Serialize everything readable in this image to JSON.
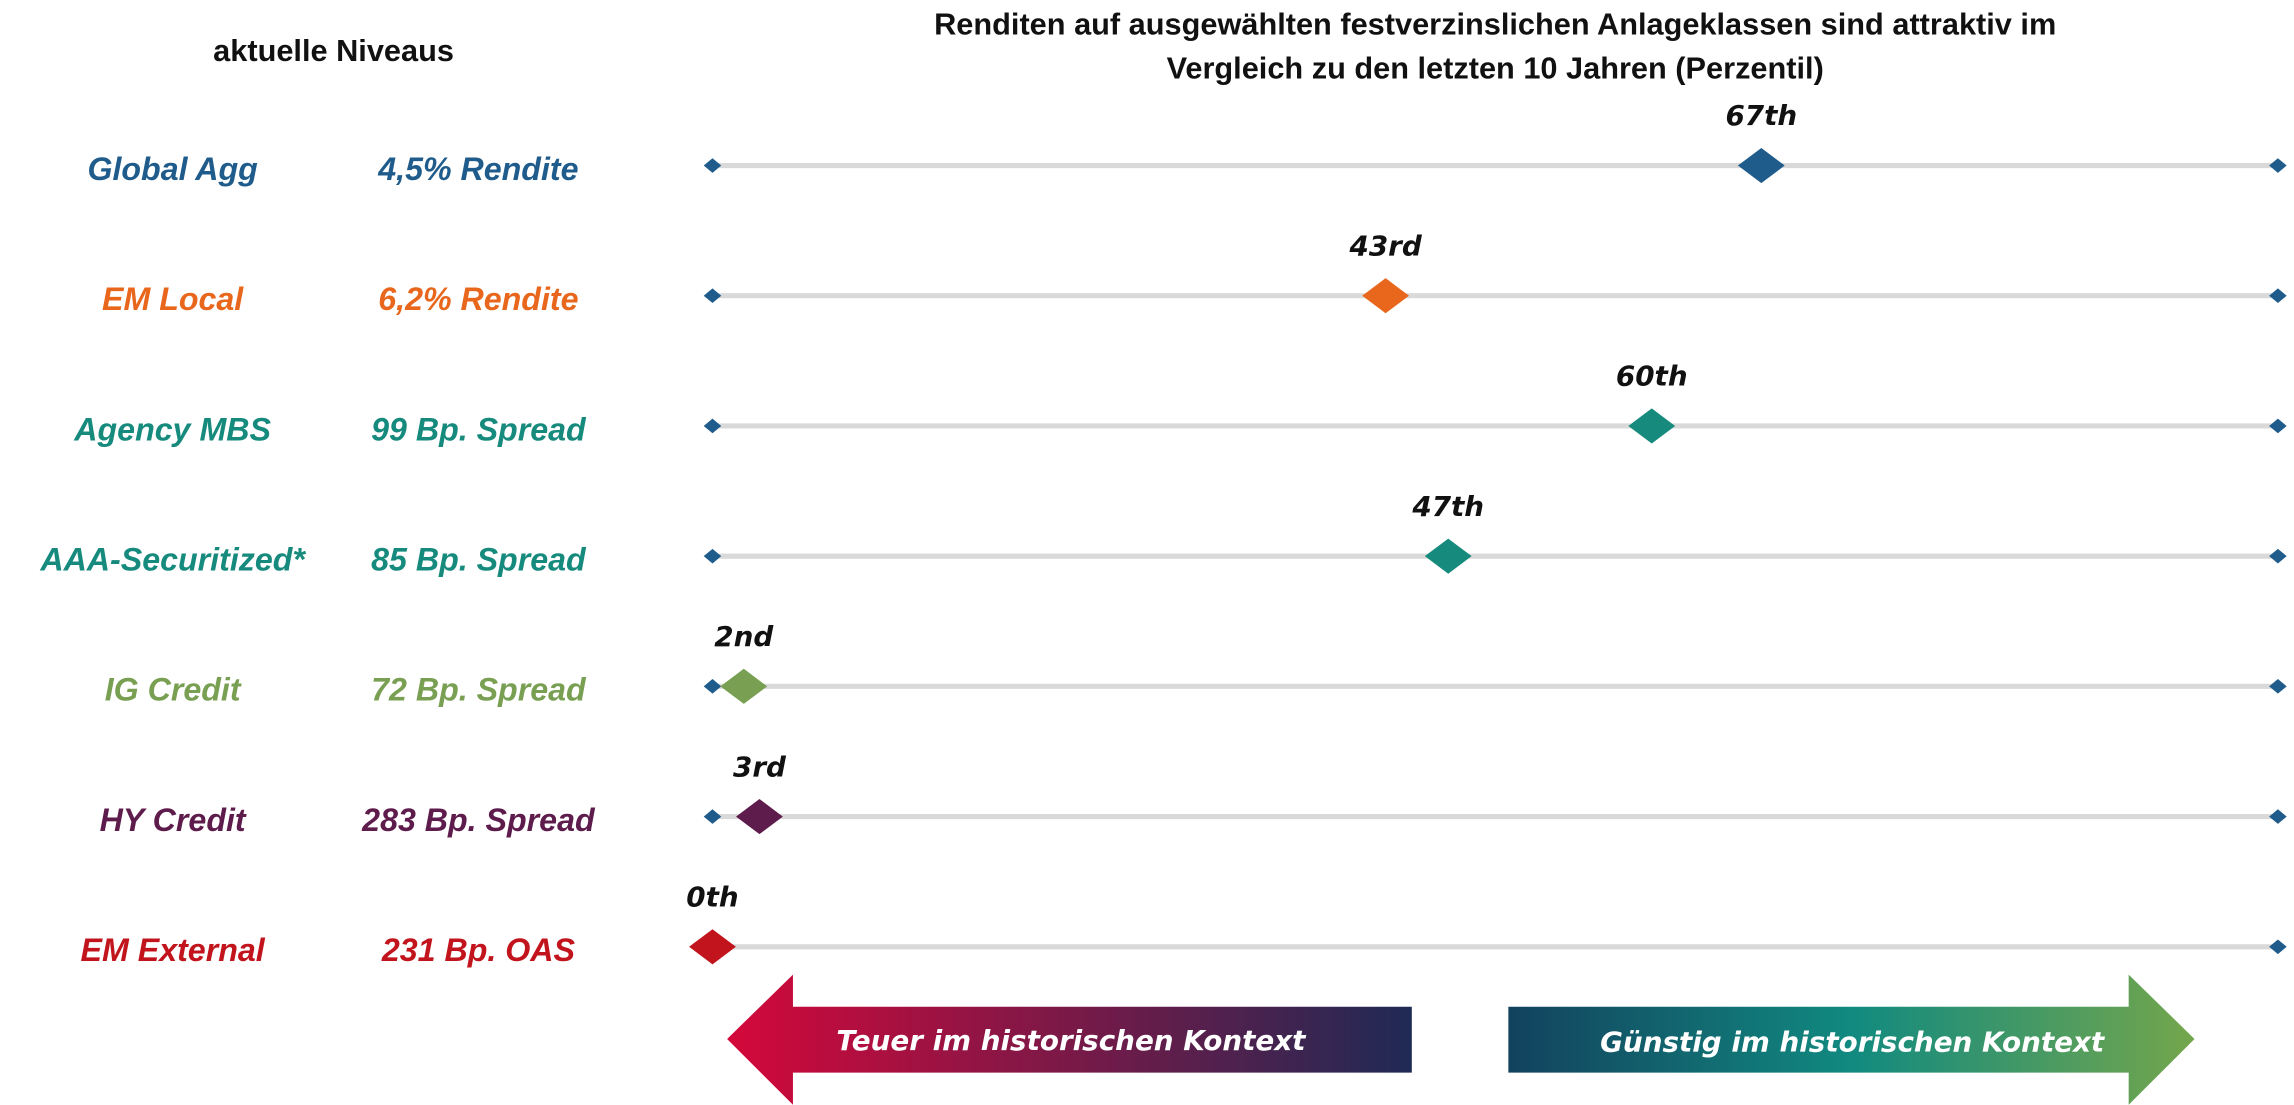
{
  "chart_data": {
    "type": "dot",
    "title": [
      "Renditen auf ausgewählten festverzinslichen Anlageklassen sind attraktiv im",
      "Vergleich zu den letzten 10 Jahren (Perzentil)"
    ],
    "subtitle": "aktuelle Niveaus",
    "categories": [
      "Global Agg",
      "EM Local",
      "Agency MBS",
      "AAA-Securitized*",
      "IG Credit",
      "HY Credit",
      "EM External"
    ],
    "levels": [
      "4,5% Rendite",
      "6,2% Rendite",
      "99 Bp. Spread",
      "85 Bp. Spread",
      "72 Bp. Spread",
      "283 Bp. Spread",
      "231 Bp. OAS"
    ],
    "values": [
      67,
      43,
      60,
      47,
      2,
      3,
      0
    ],
    "value_labels": [
      "67th",
      "43rd",
      "60th",
      "47th",
      "2nd",
      "3rd",
      "0th"
    ],
    "colors": [
      "#1f5c8b",
      "#e8671c",
      "#168a7c",
      "#168a7c",
      "#79a052",
      "#5e1c4c",
      "#c2141c"
    ],
    "axis_color": "#1f5c8b",
    "xlim": [
      0,
      100
    ],
    "annotations": [
      "Teuer im historischen Kontext",
      "Günstig im historischen Kontext"
    ]
  }
}
